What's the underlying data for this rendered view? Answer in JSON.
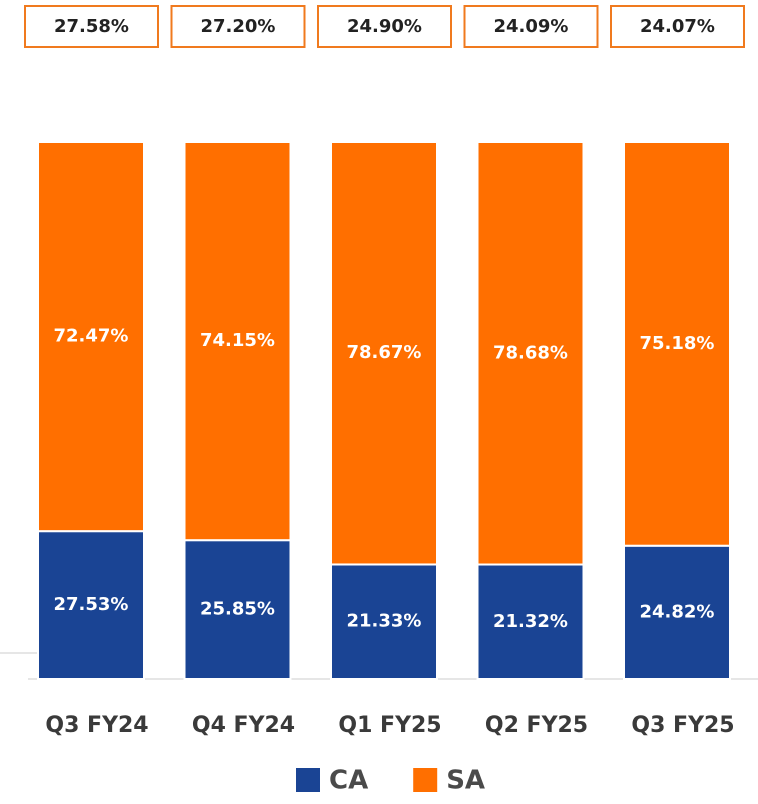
{
  "chart_data": {
    "type": "stacked_bar",
    "annotations": [
      "27.58%",
      "27.20%",
      "24.90%",
      "24.09%",
      "24.07%"
    ],
    "categories": [
      "Q3 FY24",
      "Q4 FY24",
      "Q1 FY25",
      "Q2 FY25",
      "Q3 FY25"
    ],
    "series": [
      {
        "name": "CA",
        "color": "#1a4494",
        "values": [
          27.53,
          25.85,
          21.33,
          21.32,
          24.82
        ],
        "value_labels": [
          "27.53%",
          "25.85%",
          "21.33%",
          "21.32%",
          "24.82%"
        ]
      },
      {
        "name": "SA",
        "color": "#ff6f00",
        "values": [
          72.47,
          74.15,
          78.67,
          78.68,
          75.18
        ],
        "value_labels": [
          "72.47%",
          "74.15%",
          "78.67%",
          "78.68%",
          "75.18%"
        ]
      }
    ],
    "ylim": [
      0,
      100
    ]
  }
}
